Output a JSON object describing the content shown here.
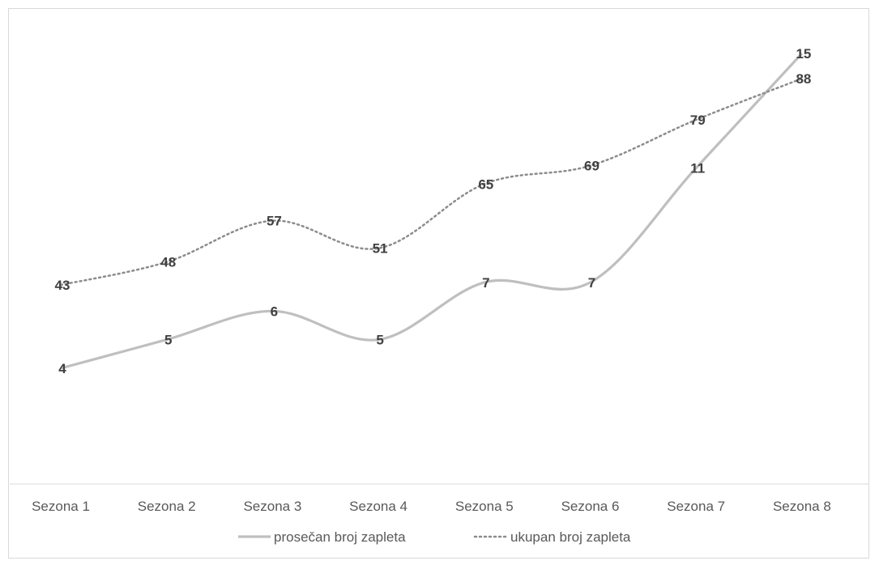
{
  "chart_data": {
    "type": "line",
    "categories": [
      "Sezona 1",
      "Sezona 2",
      "Sezona 3",
      "Sezona 4",
      "Sezona 5",
      "Sezona 6",
      "Sezona 7",
      "Sezona 8"
    ],
    "series": [
      {
        "name": "prosečan broj zapleta",
        "values": [
          4,
          5,
          6,
          5,
          7,
          7,
          11,
          15
        ],
        "color": "#bfbfbf",
        "style": "solid",
        "smooth": true
      },
      {
        "name": "ukupan broj zapleta",
        "values": [
          43,
          48,
          57,
          51,
          65,
          69,
          79,
          88
        ],
        "color": "#8c8c8c",
        "style": "dotted",
        "smooth": true
      }
    ],
    "title": "",
    "xlabel": "",
    "ylabel": "",
    "data_labels": true,
    "grid": false,
    "legend_position": "bottom",
    "value_axis_shown": false
  },
  "colors": {
    "axis": "#d9d9d9",
    "label_text": "#404040",
    "tick_text": "#595959"
  }
}
